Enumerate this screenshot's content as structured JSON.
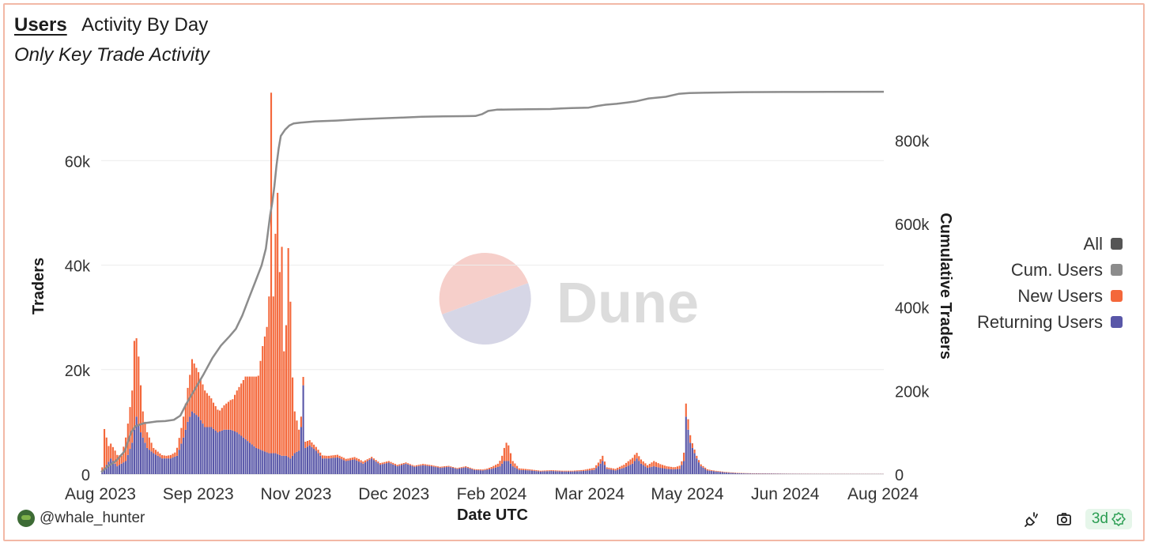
{
  "header": {
    "tab_label": "Users",
    "title": "Activity By Day",
    "subtitle": "Only Key Trade Activity"
  },
  "footer": {
    "author": "@whale_hunter",
    "refresh_badge": "3d"
  },
  "watermark": "Dune",
  "colors": {
    "new_users": "#f4673a",
    "returning_users": "#5957a8",
    "cumulative": "#8c8c8c",
    "all": "#555555"
  },
  "chart_data": {
    "type": "bar",
    "xlabel": "Date UTC",
    "ylabel": "Traders",
    "y2label": "Cumulative Traders",
    "x_ticks": [
      "Aug 2023",
      "Sep 2023",
      "Nov 2023",
      "Dec 2023",
      "Feb 2024",
      "Mar 2024",
      "May 2024",
      "Jun 2024",
      "Aug 2024"
    ],
    "y_ticks": [
      "0",
      "20k",
      "40k",
      "60k"
    ],
    "y2_ticks": [
      "0",
      "200k",
      "400k",
      "600k",
      "800k"
    ],
    "ylim": [
      0,
      73500
    ],
    "y2lim": [
      0,
      920000
    ],
    "legend": [
      {
        "label": "All",
        "color": "#555555"
      },
      {
        "label": "Cum. Users",
        "color": "#8c8c8c"
      },
      {
        "label": "New Users",
        "color": "#f4673a"
      },
      {
        "label": "Returning Users",
        "color": "#5957a8"
      }
    ],
    "series": [
      {
        "name": "Returning Users",
        "points": [
          [
            0,
            500
          ],
          [
            4,
            3000
          ],
          [
            7,
            1500
          ],
          [
            11,
            2500
          ],
          [
            14,
            6000
          ],
          [
            16,
            11000
          ],
          [
            18,
            8000
          ],
          [
            21,
            5000
          ],
          [
            24,
            4000
          ],
          [
            28,
            3000
          ],
          [
            32,
            3000
          ],
          [
            35,
            3500
          ],
          [
            38,
            7000
          ],
          [
            40,
            10000
          ],
          [
            42,
            12000
          ],
          [
            45,
            11000
          ],
          [
            48,
            9000
          ],
          [
            51,
            9000
          ],
          [
            54,
            8000
          ],
          [
            57,
            8500
          ],
          [
            60,
            8500
          ],
          [
            63,
            8000
          ],
          [
            66,
            7000
          ],
          [
            69,
            6000
          ],
          [
            72,
            5000
          ],
          [
            75,
            4500
          ],
          [
            78,
            4000
          ],
          [
            81,
            4000
          ],
          [
            84,
            3500
          ],
          [
            86,
            3500
          ],
          [
            88,
            3000
          ],
          [
            90,
            4000
          ],
          [
            92,
            4500
          ],
          [
            93,
            9000
          ],
          [
            94,
            17000
          ],
          [
            95,
            5000
          ],
          [
            97,
            5500
          ],
          [
            100,
            4500
          ],
          [
            103,
            3000
          ],
          [
            106,
            3000
          ],
          [
            110,
            3200
          ],
          [
            114,
            2500
          ],
          [
            118,
            2800
          ],
          [
            122,
            2000
          ],
          [
            126,
            3000
          ],
          [
            130,
            1800
          ],
          [
            134,
            2200
          ],
          [
            138,
            1500
          ],
          [
            142,
            2000
          ],
          [
            146,
            1400
          ],
          [
            150,
            1700
          ],
          [
            154,
            1500
          ],
          [
            158,
            1200
          ],
          [
            162,
            1400
          ],
          [
            166,
            1000
          ],
          [
            170,
            1300
          ],
          [
            174,
            800
          ],
          [
            178,
            700
          ],
          [
            182,
            1000
          ],
          [
            186,
            1500
          ],
          [
            188,
            2500
          ],
          [
            190,
            2500
          ],
          [
            192,
            1500
          ],
          [
            195,
            800
          ],
          [
            200,
            700
          ],
          [
            205,
            500
          ],
          [
            210,
            600
          ],
          [
            215,
            500
          ],
          [
            220,
            500
          ],
          [
            225,
            600
          ],
          [
            230,
            800
          ],
          [
            232,
            1500
          ],
          [
            234,
            2500
          ],
          [
            236,
            1000
          ],
          [
            240,
            700
          ],
          [
            244,
            1200
          ],
          [
            248,
            2000
          ],
          [
            250,
            3000
          ],
          [
            252,
            2000
          ],
          [
            255,
            1200
          ],
          [
            258,
            1500
          ],
          [
            261,
            1200
          ],
          [
            264,
            1000
          ],
          [
            267,
            900
          ],
          [
            270,
            1000
          ],
          [
            272,
            2500
          ],
          [
            273,
            11000
          ],
          [
            274,
            8500
          ],
          [
            275,
            6000
          ],
          [
            276,
            5000
          ],
          [
            278,
            3000
          ],
          [
            280,
            1500
          ],
          [
            283,
            700
          ],
          [
            287,
            500
          ],
          [
            292,
            300
          ],
          [
            298,
            150
          ],
          [
            305,
            100
          ],
          [
            320,
            60
          ],
          [
            340,
            40
          ],
          [
            366,
            30
          ]
        ]
      },
      {
        "name": "New Users",
        "points": [
          [
            0,
            800
          ],
          [
            1,
            7500
          ],
          [
            3,
            3000
          ],
          [
            6,
            2500
          ],
          [
            9,
            1500
          ],
          [
            12,
            6000
          ],
          [
            14,
            10000
          ],
          [
            15,
            17000
          ],
          [
            16,
            15000
          ],
          [
            17,
            13000
          ],
          [
            19,
            5000
          ],
          [
            21,
            3000
          ],
          [
            24,
            1000
          ],
          [
            27,
            700
          ],
          [
            30,
            500
          ],
          [
            34,
            800
          ],
          [
            37,
            3000
          ],
          [
            39,
            5000
          ],
          [
            41,
            8000
          ],
          [
            42,
            10000
          ],
          [
            44,
            9000
          ],
          [
            46,
            8000
          ],
          [
            48,
            7000
          ],
          [
            50,
            6000
          ],
          [
            52,
            5000
          ],
          [
            55,
            4000
          ],
          [
            58,
            5000
          ],
          [
            61,
            6000
          ],
          [
            64,
            9000
          ],
          [
            67,
            12000
          ],
          [
            70,
            13000
          ],
          [
            73,
            14000
          ],
          [
            75,
            20000
          ],
          [
            76,
            22000
          ],
          [
            77,
            24000
          ],
          [
            78,
            30000
          ],
          [
            79,
            69000
          ],
          [
            80,
            30000
          ],
          [
            81,
            42000
          ],
          [
            82,
            50000
          ],
          [
            83,
            35000
          ],
          [
            84,
            40000
          ],
          [
            85,
            20000
          ],
          [
            86,
            25000
          ],
          [
            87,
            40000
          ],
          [
            88,
            30000
          ],
          [
            89,
            15000
          ],
          [
            90,
            8000
          ],
          [
            91,
            6000
          ],
          [
            93,
            2000
          ],
          [
            95,
            1200
          ],
          [
            100,
            700
          ],
          [
            105,
            500
          ],
          [
            110,
            500
          ],
          [
            115,
            400
          ],
          [
            120,
            500
          ],
          [
            125,
            300
          ],
          [
            130,
            300
          ],
          [
            135,
            300
          ],
          [
            140,
            250
          ],
          [
            145,
            200
          ],
          [
            150,
            250
          ],
          [
            155,
            200
          ],
          [
            160,
            200
          ],
          [
            165,
            150
          ],
          [
            170,
            200
          ],
          [
            175,
            150
          ],
          [
            180,
            200
          ],
          [
            185,
            600
          ],
          [
            187,
            1500
          ],
          [
            189,
            3500
          ],
          [
            190,
            3000
          ],
          [
            192,
            1000
          ],
          [
            195,
            300
          ],
          [
            200,
            200
          ],
          [
            205,
            150
          ],
          [
            210,
            150
          ],
          [
            220,
            150
          ],
          [
            225,
            200
          ],
          [
            230,
            400
          ],
          [
            232,
            700
          ],
          [
            234,
            1000
          ],
          [
            236,
            300
          ],
          [
            240,
            300
          ],
          [
            244,
            600
          ],
          [
            247,
            1000
          ],
          [
            249,
            1200
          ],
          [
            252,
            800
          ],
          [
            255,
            500
          ],
          [
            258,
            1000
          ],
          [
            261,
            700
          ],
          [
            264,
            500
          ],
          [
            268,
            400
          ],
          [
            271,
            700
          ],
          [
            273,
            2500
          ],
          [
            274,
            2000
          ],
          [
            276,
            900
          ],
          [
            278,
            500
          ],
          [
            281,
            300
          ],
          [
            285,
            150
          ],
          [
            290,
            100
          ],
          [
            300,
            60
          ],
          [
            320,
            30
          ],
          [
            366,
            20
          ]
        ]
      }
    ],
    "cumulative": [
      [
        0,
        5000
      ],
      [
        3,
        18000
      ],
      [
        7,
        32000
      ],
      [
        11,
        55000
      ],
      [
        14,
        100000
      ],
      [
        16,
        115000
      ],
      [
        20,
        122000
      ],
      [
        26,
        126000
      ],
      [
        30,
        127000
      ],
      [
        34,
        130000
      ],
      [
        37,
        140000
      ],
      [
        40,
        170000
      ],
      [
        44,
        205000
      ],
      [
        48,
        240000
      ],
      [
        52,
        278000
      ],
      [
        56,
        308000
      ],
      [
        60,
        330000
      ],
      [
        63,
        348000
      ],
      [
        66,
        380000
      ],
      [
        69,
        420000
      ],
      [
        72,
        460000
      ],
      [
        75,
        500000
      ],
      [
        77,
        540000
      ],
      [
        78,
        580000
      ],
      [
        79,
        620000
      ],
      [
        80,
        650000
      ],
      [
        81,
        690000
      ],
      [
        82,
        740000
      ],
      [
        83,
        780000
      ],
      [
        84,
        810000
      ],
      [
        86,
        825000
      ],
      [
        88,
        835000
      ],
      [
        90,
        840000
      ],
      [
        93,
        842000
      ],
      [
        100,
        845000
      ],
      [
        110,
        847000
      ],
      [
        120,
        850000
      ],
      [
        130,
        852000
      ],
      [
        140,
        854000
      ],
      [
        150,
        856000
      ],
      [
        160,
        857000
      ],
      [
        170,
        857500
      ],
      [
        175,
        858000
      ],
      [
        178,
        862000
      ],
      [
        181,
        870000
      ],
      [
        185,
        873000
      ],
      [
        190,
        873500
      ],
      [
        200,
        874000
      ],
      [
        210,
        874500
      ],
      [
        215,
        876000
      ],
      [
        220,
        877000
      ],
      [
        228,
        878000
      ],
      [
        232,
        882000
      ],
      [
        236,
        885000
      ],
      [
        241,
        887000
      ],
      [
        246,
        890000
      ],
      [
        250,
        893000
      ],
      [
        256,
        900000
      ],
      [
        264,
        904000
      ],
      [
        270,
        911000
      ],
      [
        275,
        913000
      ],
      [
        285,
        914000
      ],
      [
        300,
        915000
      ],
      [
        320,
        915500
      ],
      [
        340,
        915800
      ],
      [
        366,
        916000
      ]
    ]
  }
}
